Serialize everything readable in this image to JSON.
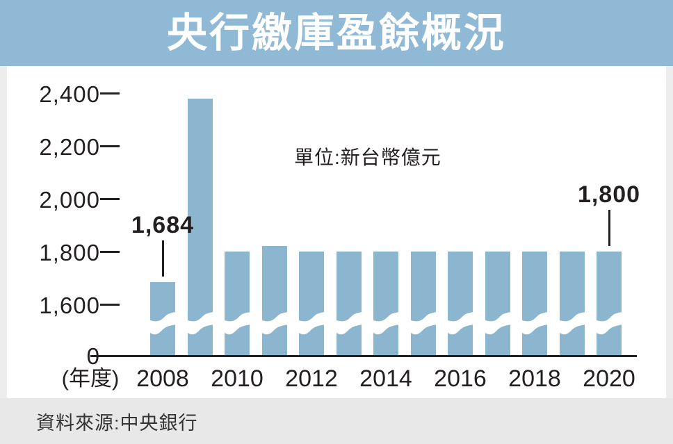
{
  "title": "央行繳庫盈餘概況",
  "source": "資料來源:中央銀行",
  "colors": {
    "header_bg": "#8FB9D4",
    "bar": "#8CB5D0",
    "footer_bg": "#E8E8E8",
    "axis": "#231F20",
    "title_text": "#FFFFFF"
  },
  "chart_data": {
    "type": "bar",
    "title": "央行繳庫盈餘概況",
    "unit_label": "單位:新台幣億元",
    "x_axis_title": "(年度)",
    "categories": [
      2008,
      2009,
      2010,
      2011,
      2012,
      2013,
      2014,
      2015,
      2016,
      2017,
      2018,
      2019,
      2020
    ],
    "values": [
      1684,
      2380,
      1800,
      1820,
      1800,
      1800,
      1800,
      1800,
      1800,
      1800,
      1800,
      1800,
      1800
    ],
    "x_tick_labels": [
      "2008",
      "2010",
      "2012",
      "2014",
      "2016",
      "2018",
      "2020"
    ],
    "x_tick_years": [
      2008,
      2010,
      2012,
      2014,
      2016,
      2018,
      2020
    ],
    "y_ticks": [
      {
        "value": 2400,
        "label": "2,400"
      },
      {
        "value": 2200,
        "label": "2,200"
      },
      {
        "value": 2000,
        "label": "2,000"
      },
      {
        "value": 1800,
        "label": "1,800"
      },
      {
        "value": 1600,
        "label": "1,600"
      },
      {
        "value": 0,
        "label": "0"
      }
    ],
    "ylim": [
      0,
      2400
    ],
    "axis_break": true,
    "grid": false,
    "legend": false,
    "annotations": [
      {
        "year": 2008,
        "text": "1,684"
      },
      {
        "year": 2020,
        "text": "1,800"
      }
    ]
  }
}
